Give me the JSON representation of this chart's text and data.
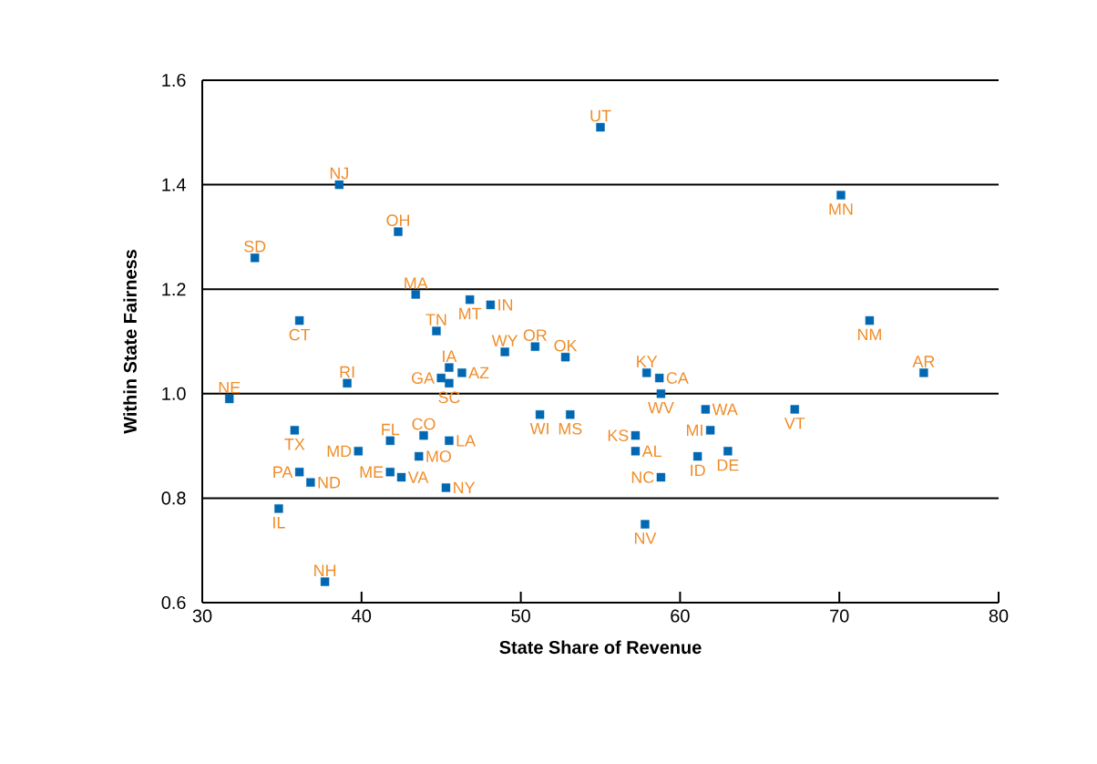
{
  "chart_data": {
    "type": "scatter",
    "xlabel": "State Share of Revenue",
    "ylabel": "Within State Fairness",
    "x": [
      38.6,
      33.3,
      42.3,
      43.4,
      36.1,
      44.7,
      46.8,
      48.1,
      49.0,
      50.9,
      52.8,
      45.5,
      46.3,
      45.0,
      45.5,
      39.1,
      31.7,
      35.8,
      41.8,
      43.9,
      45.5,
      39.8,
      43.6,
      41.8,
      42.5,
      36.1,
      36.8,
      45.3,
      34.8,
      37.7,
      51.2,
      53.1,
      71.9,
      75.3,
      57.9,
      58.7,
      58.8,
      61.6,
      67.2,
      57.2,
      61.9,
      57.2,
      61.1,
      63.0,
      58.8,
      57.8,
      55.0,
      70.1
    ],
    "values": [
      1.4,
      1.26,
      1.31,
      1.19,
      1.14,
      1.12,
      1.18,
      1.17,
      1.08,
      1.09,
      1.07,
      1.05,
      1.04,
      1.03,
      1.02,
      1.02,
      0.99,
      0.93,
      0.91,
      0.92,
      0.91,
      0.89,
      0.88,
      0.85,
      0.84,
      0.85,
      0.83,
      0.82,
      0.78,
      0.64,
      0.96,
      0.96,
      1.14,
      1.04,
      1.04,
      1.03,
      1.0,
      0.97,
      0.97,
      0.92,
      0.93,
      0.89,
      0.88,
      0.89,
      0.84,
      0.75,
      1.51,
      1.38
    ],
    "color": "#0068b3",
    "marker": "square",
    "xlim": [
      30,
      80
    ],
    "xticks": [
      30,
      40,
      50,
      60,
      70,
      80
    ],
    "ylim": [
      0.6,
      1.6
    ],
    "yticks": [
      0.6,
      0.8,
      {
        "value": 1.0,
        "label": "1.0"
      },
      1.2,
      1.4,
      1.6
    ],
    "grid": "y",
    "annotations": [
      {
        "text": "NJ",
        "x": 38.6,
        "y": 1.4
      },
      {
        "text": "SD",
        "x": 33.3,
        "y": 1.26
      },
      {
        "text": "OH",
        "x": 42.3,
        "y": 1.31
      },
      {
        "text": "MA",
        "x": 43.4,
        "y": 1.19
      },
      {
        "text": "CT",
        "x": 36.1,
        "y": 1.14
      },
      {
        "text": "TN",
        "x": 44.7,
        "y": 1.12
      },
      {
        "text": "MT",
        "x": 46.8,
        "y": 1.18
      },
      {
        "text": "IN",
        "x": 48.1,
        "y": 1.17
      },
      {
        "text": "WY",
        "x": 49.0,
        "y": 1.08
      },
      {
        "text": "OR",
        "x": 50.9,
        "y": 1.09
      },
      {
        "text": "OK",
        "x": 52.8,
        "y": 1.07
      },
      {
        "text": "IA",
        "x": 45.5,
        "y": 1.05
      },
      {
        "text": "AZ",
        "x": 46.3,
        "y": 1.04
      },
      {
        "text": "GA",
        "x": 45.0,
        "y": 1.03
      },
      {
        "text": "SC",
        "x": 45.5,
        "y": 1.02
      },
      {
        "text": "RI",
        "x": 39.1,
        "y": 1.02
      },
      {
        "text": "NE",
        "x": 31.7,
        "y": 0.99
      },
      {
        "text": "TX",
        "x": 35.8,
        "y": 0.93
      },
      {
        "text": "FL",
        "x": 41.8,
        "y": 0.91
      },
      {
        "text": "CO",
        "x": 43.9,
        "y": 0.92
      },
      {
        "text": "LA",
        "x": 45.5,
        "y": 0.91
      },
      {
        "text": "MD",
        "x": 39.8,
        "y": 0.89
      },
      {
        "text": "MO",
        "x": 43.6,
        "y": 0.88
      },
      {
        "text": "ME",
        "x": 41.8,
        "y": 0.85
      },
      {
        "text": "VA",
        "x": 42.5,
        "y": 0.84
      },
      {
        "text": "PA",
        "x": 36.1,
        "y": 0.85
      },
      {
        "text": "ND",
        "x": 36.8,
        "y": 0.83
      },
      {
        "text": "NY",
        "x": 45.3,
        "y": 0.82
      },
      {
        "text": "IL",
        "x": 34.8,
        "y": 0.78
      },
      {
        "text": "NH",
        "x": 37.7,
        "y": 0.64
      },
      {
        "text": "WI",
        "x": 51.2,
        "y": 0.96
      },
      {
        "text": "MS",
        "x": 53.1,
        "y": 0.96
      },
      {
        "text": "NM",
        "x": 71.9,
        "y": 1.14
      },
      {
        "text": "AR",
        "x": 75.3,
        "y": 1.04
      },
      {
        "text": "KY",
        "x": 57.9,
        "y": 1.04
      },
      {
        "text": "CA",
        "x": 58.7,
        "y": 1.03
      },
      {
        "text": "WV",
        "x": 58.8,
        "y": 1.0
      },
      {
        "text": "WA",
        "x": 61.6,
        "y": 0.97
      },
      {
        "text": "VT",
        "x": 67.2,
        "y": 0.97
      },
      {
        "text": "KS",
        "x": 57.2,
        "y": 0.92
      },
      {
        "text": "MI",
        "x": 61.9,
        "y": 0.93
      },
      {
        "text": "AL",
        "x": 57.2,
        "y": 0.89
      },
      {
        "text": "ID",
        "x": 61.1,
        "y": 0.88
      },
      {
        "text": "DE",
        "x": 63.0,
        "y": 0.89
      },
      {
        "text": "NC",
        "x": 58.8,
        "y": 0.84
      },
      {
        "text": "NV",
        "x": 57.8,
        "y": 0.75
      },
      {
        "text": "UT",
        "x": 55.0,
        "y": 1.51
      },
      {
        "text": "MN",
        "x": 70.1,
        "y": 1.38
      }
    ]
  }
}
